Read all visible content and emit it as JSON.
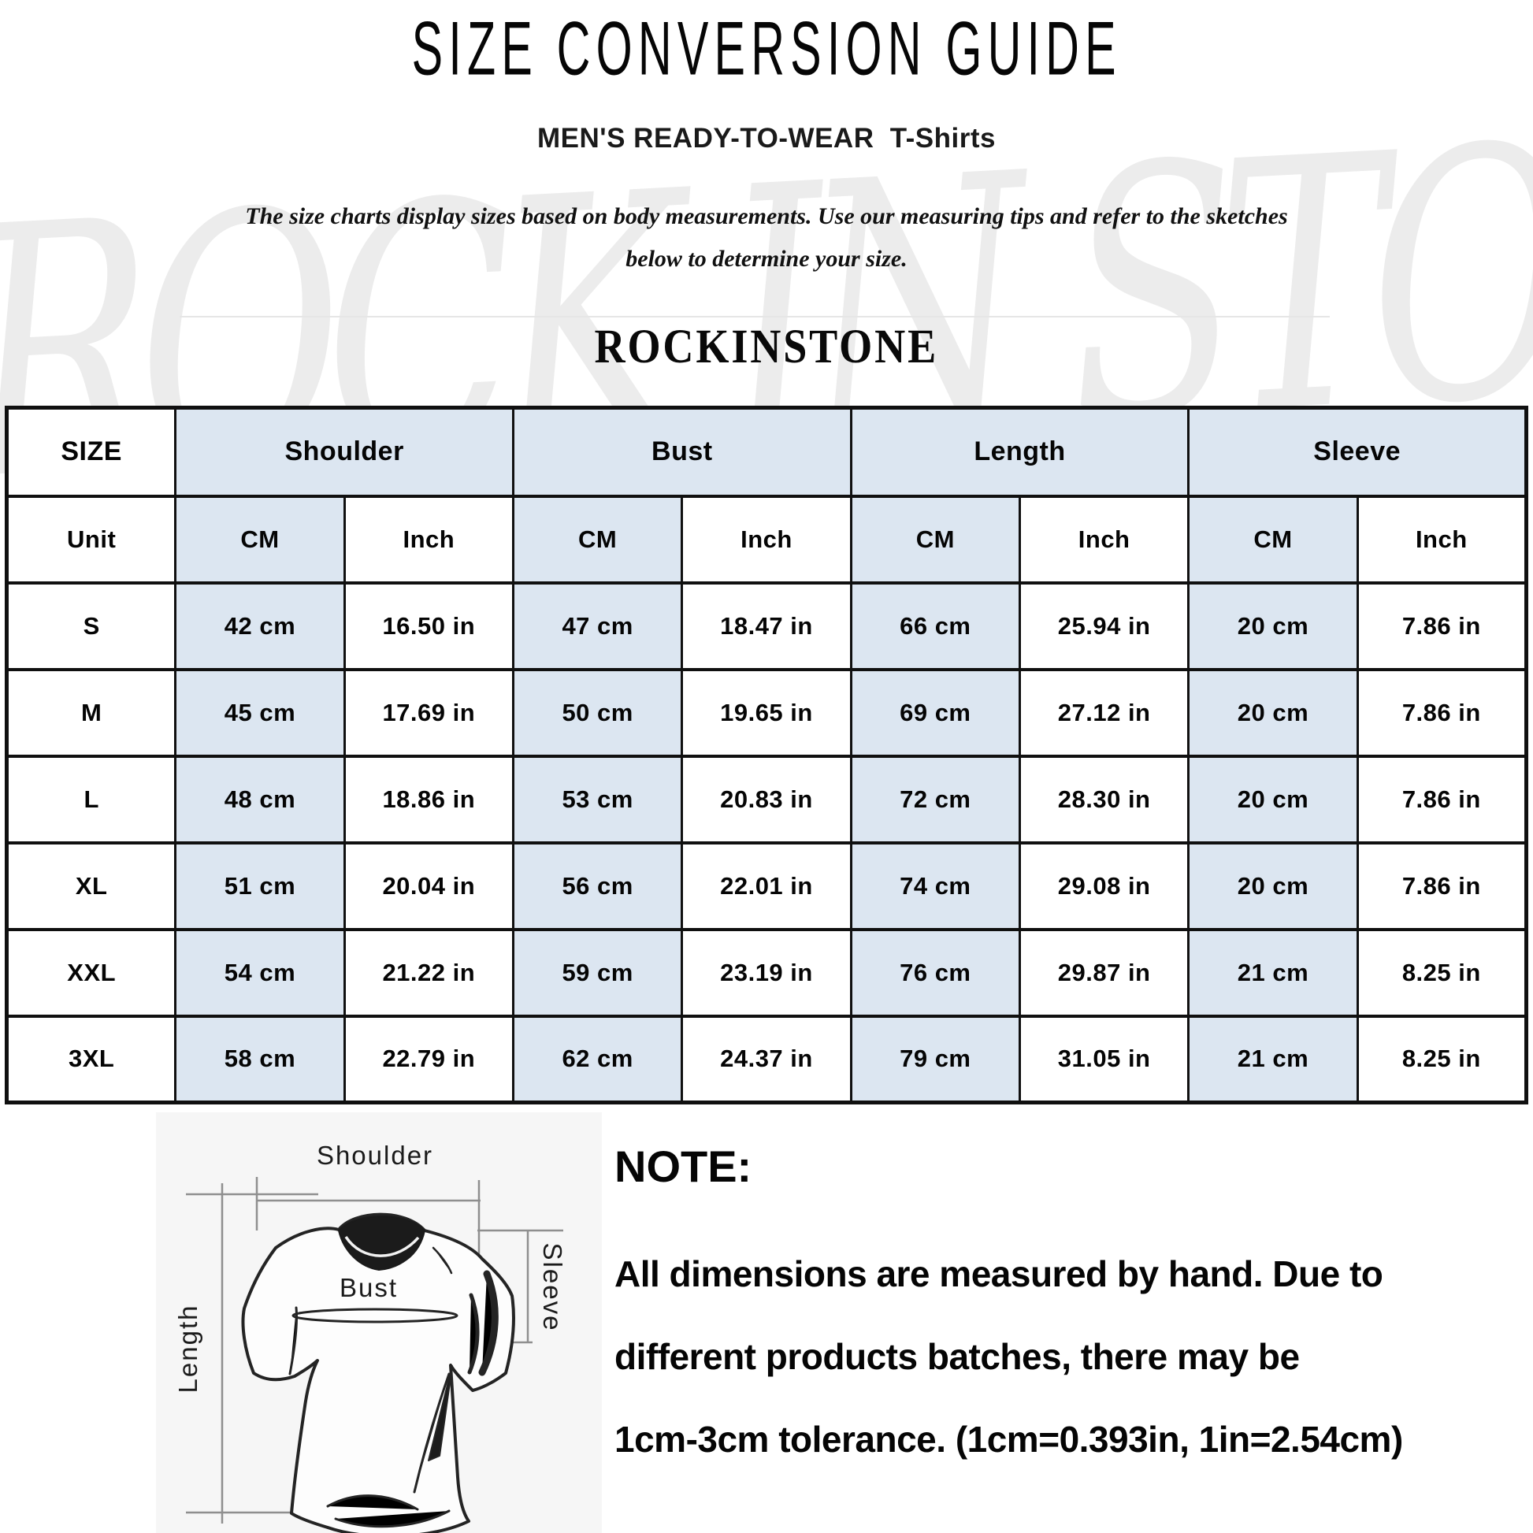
{
  "header": {
    "title": "SIZE CONVERSION GUIDE",
    "subtitle_main": "MEN'S READY-TO-WEAR",
    "subtitle_product": "T-Shirts",
    "description_line1": "The size charts display sizes based on body measurements.  Use our measuring tips and refer to the sketches",
    "description_line2": "below to determine your size.",
    "brand": "ROCKINSTONE",
    "watermark": "ROCK IN STONE"
  },
  "size_table": {
    "size_header": "SIZE",
    "groups": [
      "Shoulder",
      "Bust",
      "Length",
      "Sleeve"
    ],
    "unit_label": "Unit",
    "units": [
      "CM",
      "Inch",
      "CM",
      "Inch",
      "CM",
      "Inch",
      "CM",
      "Inch"
    ],
    "rows": [
      {
        "size": "S",
        "values": [
          "42 cm",
          "16.50 in",
          "47 cm",
          "18.47 in",
          "66 cm",
          "25.94 in",
          "20 cm",
          "7.86 in"
        ]
      },
      {
        "size": "M",
        "values": [
          "45 cm",
          "17.69 in",
          "50 cm",
          "19.65 in",
          "69 cm",
          "27.12 in",
          "20 cm",
          "7.86 in"
        ]
      },
      {
        "size": "L",
        "values": [
          "48 cm",
          "18.86 in",
          "53 cm",
          "20.83 in",
          "72 cm",
          "28.30 in",
          "20 cm",
          "7.86 in"
        ]
      },
      {
        "size": "XL",
        "values": [
          "51 cm",
          "20.04 in",
          "56 cm",
          "22.01 in",
          "74 cm",
          "29.08 in",
          "20 cm",
          "7.86 in"
        ]
      },
      {
        "size": "XXL",
        "values": [
          "54 cm",
          "21.22 in",
          "59 cm",
          "23.19 in",
          "76 cm",
          "29.87 in",
          "21 cm",
          "8.25 in"
        ]
      },
      {
        "size": "3XL",
        "values": [
          "58 cm",
          "22.79 in",
          "62 cm",
          "24.37 in",
          "79 cm",
          "31.05 in",
          "21 cm",
          "8.25 in"
        ]
      }
    ]
  },
  "diagram": {
    "shoulder_label": "Shoulder",
    "bust_label": "Bust",
    "length_label": "Length",
    "sleeve_label": "Sleeve"
  },
  "note": {
    "heading": "NOTE:",
    "lines": [
      "All dimensions are measured by hand. Due to",
      "different products batches, there may be",
      "1cm-3cm tolerance. (1cm=0.393in, 1in=2.54cm)"
    ]
  },
  "colors": {
    "cell_blue": "#dce6f1",
    "table_border": "#101010",
    "watermark_gray": "#ececec",
    "diagram_bg": "#f6f6f6",
    "dimension_line": "#8f8f8f",
    "text_black": "#050505"
  }
}
